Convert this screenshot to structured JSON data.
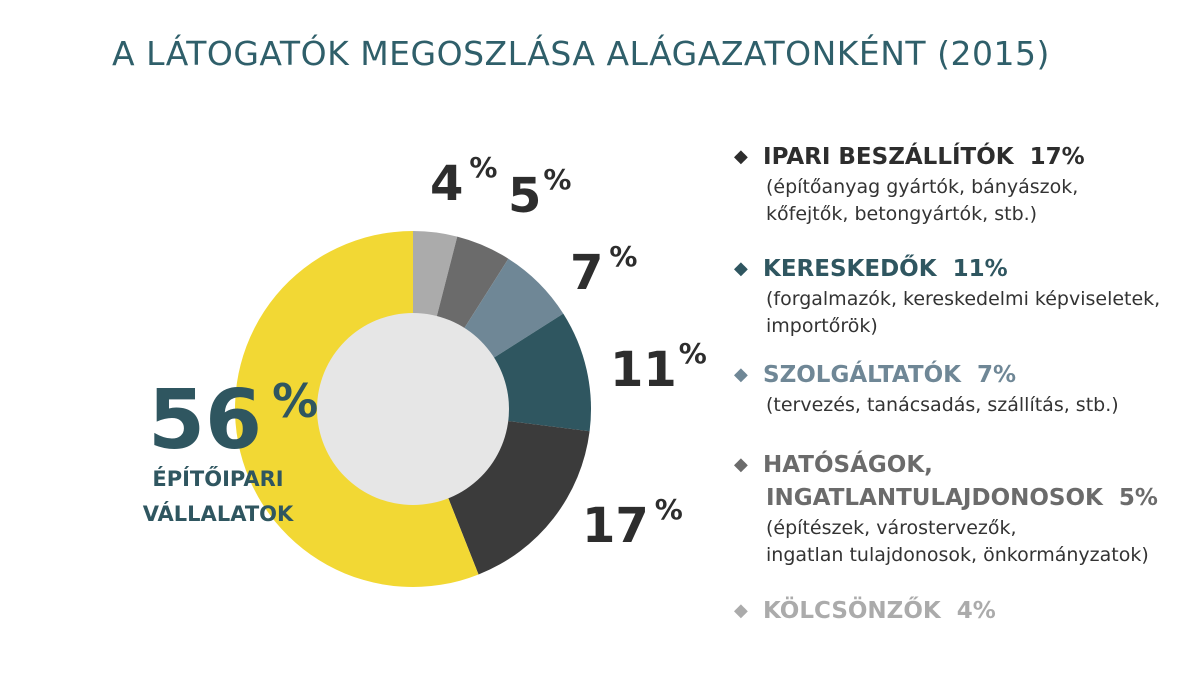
{
  "title": "A LÁTOGATÓK MEGOSZLÁSA ALÁGAZATONKÉNT  (2015)",
  "colors": {
    "yellow": "#f2d834",
    "dark_gray": "#3b3b3b",
    "teal": "#2f5660",
    "blue_gray": "#6f8796",
    "mid_gray": "#6b6b6b",
    "light_gray": "#ababab",
    "center": "#e6e6e6"
  },
  "chart_data": {
    "type": "pie",
    "subtype": "donut",
    "slices": [
      {
        "label": "KÖLCSÖNZŐK",
        "value": 4,
        "color": "#ababab"
      },
      {
        "label": "HATÓSÁGOK, INGATLANTULAJDONOSOK",
        "value": 5,
        "color": "#6b6b6b"
      },
      {
        "label": "SZOLGÁLTATÓK",
        "value": 7,
        "color": "#6f8796"
      },
      {
        "label": "KERESKEDŐK",
        "value": 11,
        "color": "#2f5660"
      },
      {
        "label": "IPARI BESZÁLLÍTÓK",
        "value": 17,
        "color": "#3b3b3b"
      },
      {
        "label": "ÉPÍTŐIPARI VÁLLALATOK",
        "value": 56,
        "color": "#f2d834"
      }
    ],
    "slice_labels": [
      {
        "num": "4",
        "sym": "%"
      },
      {
        "num": "5",
        "sym": "%"
      },
      {
        "num": "7",
        "sym": "%"
      },
      {
        "num": "11",
        "sym": "%"
      },
      {
        "num": "17",
        "sym": "%"
      }
    ],
    "big_label": {
      "num": "56",
      "sym": "%",
      "line1": "ÉPÍTŐIPARI",
      "line2": "VÁLLALATOK"
    }
  },
  "legend": [
    {
      "name": "IPARI BESZÁLLÍTÓK",
      "pct": "17%",
      "color": "#2d2d2d",
      "desc1": "(építőanyag gyártók, bányászok,",
      "desc2": "kőfejtők, betongyártók, stb.)"
    },
    {
      "name": "KERESKEDŐK",
      "pct": "11%",
      "color": "#2f5660",
      "desc1": "(forgalmazók, kereskedelmi képviseletek,",
      "desc2": "importőrök)"
    },
    {
      "name": "SZOLGÁLTATÓK",
      "pct": "7%",
      "color": "#6f8796",
      "desc1": "(tervezés, tanácsadás, szállítás, stb.)",
      "desc2": ""
    },
    {
      "name1": "HATÓSÁGOK,",
      "name2": "INGATLANTULAJDONOSOK",
      "pct": "5%",
      "color": "#6b6b6b",
      "desc1": "(építészek, várostervezők,",
      "desc2": "ingatlan tulajdonosok, önkormányzatok)"
    },
    {
      "name": "KÖLCSÖNZŐK",
      "pct": "4%",
      "color": "#ababab"
    }
  ]
}
